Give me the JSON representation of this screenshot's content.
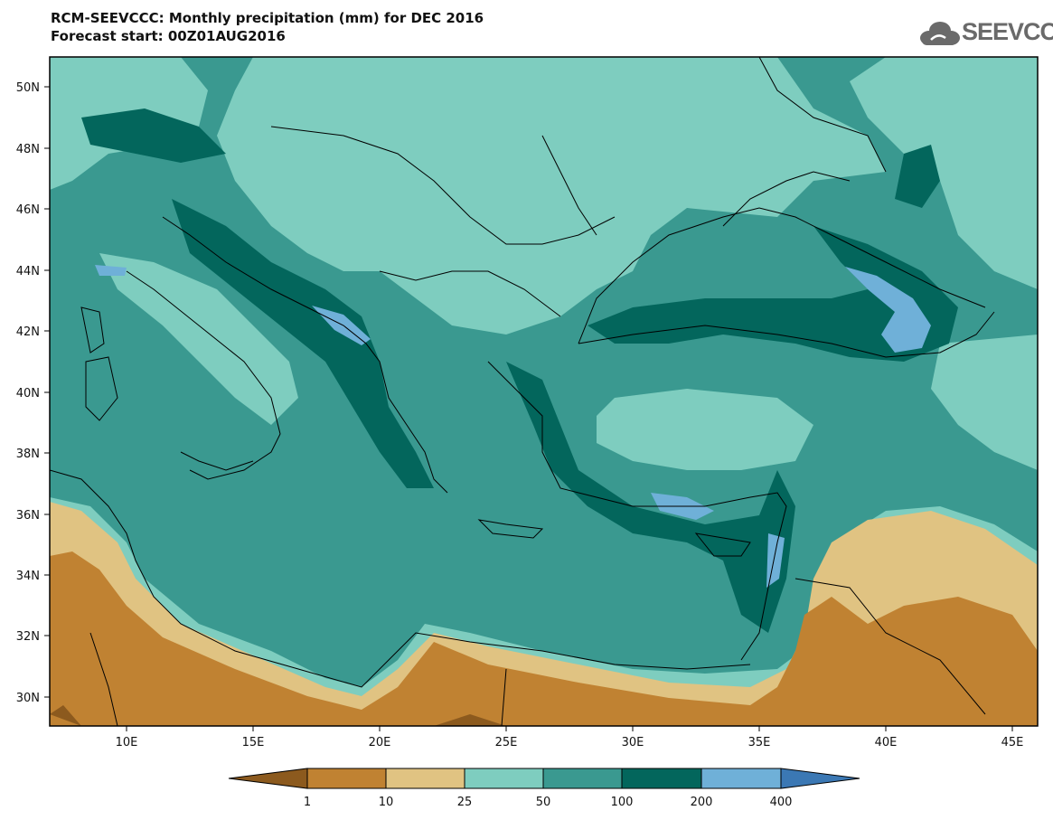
{
  "header": {
    "title_line1": "RCM-SEEVCCC: Monthly precipitation (mm) for DEC 2016",
    "title_line2": "Forecast start: 00Z01AUG2016"
  },
  "logo": {
    "text": "SEEVCCC",
    "icon": "cloud-icon"
  },
  "map": {
    "lat_labels": [
      "50N",
      "48N",
      "46N",
      "44N",
      "42N",
      "40N",
      "38N",
      "36N",
      "34N",
      "32N",
      "30N"
    ],
    "lon_labels": [
      "10E",
      "15E",
      "20E",
      "25E",
      "30E",
      "35E",
      "40E",
      "45E"
    ]
  },
  "legend": {
    "values": [
      "1",
      "10",
      "25",
      "50",
      "100",
      "200",
      "400"
    ],
    "colors": [
      "#8c5a1e",
      "#c08232",
      "#e0c382",
      "#7ecdbf",
      "#3a9990",
      "#03665c",
      "#6fb0d8",
      "#3b78b4"
    ]
  }
}
